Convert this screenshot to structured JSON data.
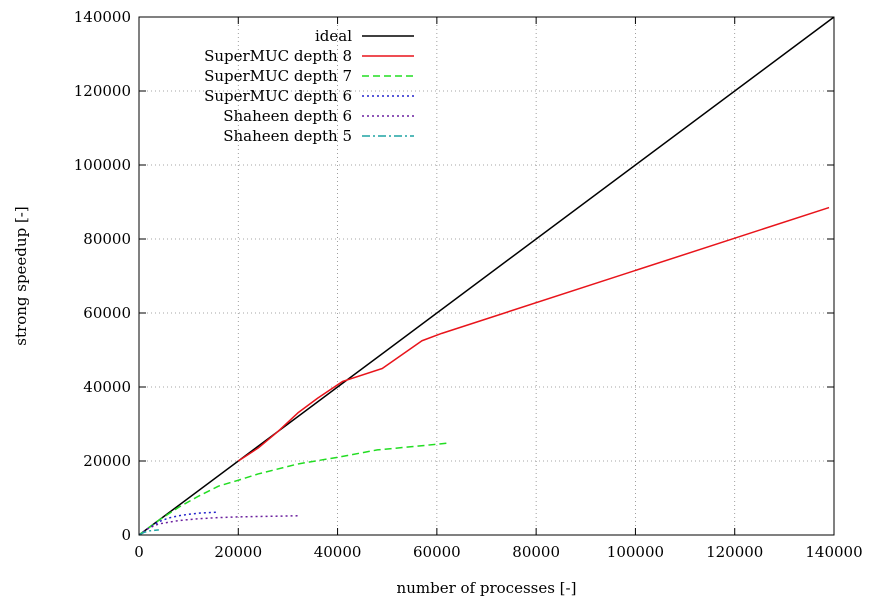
{
  "chart_data": {
    "type": "line",
    "xlabel": "number of processes [-]",
    "ylabel": "strong speedup [-]",
    "xlim": [
      0,
      140000
    ],
    "ylim": [
      0,
      140000
    ],
    "xticks": [
      0,
      20000,
      40000,
      60000,
      80000,
      100000,
      120000,
      140000
    ],
    "yticks": [
      0,
      20000,
      40000,
      60000,
      80000,
      100000,
      120000,
      140000
    ],
    "grid": true,
    "legend_position": "top-left",
    "series": [
      {
        "name": "ideal",
        "color": "#000000",
        "dash": "solid",
        "x": [
          0,
          140000
        ],
        "y": [
          0,
          140000
        ]
      },
      {
        "name": "SuperMUC depth 8",
        "color": "#e8141b",
        "dash": "solid",
        "x": [
          20000,
          24000,
          28000,
          32000,
          36000,
          41000,
          49000,
          57000,
          61000,
          139000
        ],
        "y": [
          20000,
          23500,
          28000,
          33000,
          37000,
          41500,
          45000,
          52500,
          54500,
          88500
        ]
      },
      {
        "name": "SuperMUC depth 7",
        "color": "#22dd22",
        "dash": "dashed",
        "x": [
          0,
          2000,
          4000,
          8000,
          12000,
          16000,
          20000,
          24000,
          32000,
          40000,
          48000,
          56000,
          62000
        ],
        "y": [
          0,
          2000,
          4000,
          7500,
          10500,
          13200,
          14800,
          16500,
          19200,
          21000,
          23000,
          24000,
          24800
        ]
      },
      {
        "name": "SuperMUC depth 6",
        "color": "#2222cc",
        "dash": "dotted",
        "x": [
          0,
          2000,
          4000,
          6000,
          8000,
          10000,
          12000,
          16000
        ],
        "y": [
          0,
          1900,
          3600,
          4600,
          5200,
          5600,
          5900,
          6200
        ]
      },
      {
        "name": "Shaheen depth 6",
        "color": "#6a1f9e",
        "dash": "dotted",
        "x": [
          0,
          2000,
          4000,
          8000,
          12000,
          16000,
          20000,
          24000,
          32500
        ],
        "y": [
          0,
          1900,
          3000,
          3900,
          4400,
          4700,
          4900,
          5000,
          5200
        ]
      },
      {
        "name": "Shaheen depth 5",
        "color": "#1fa3a3",
        "dash": "dashdot",
        "x": [
          0,
          1000,
          2000,
          4000
        ],
        "y": [
          0,
          700,
          1100,
          1400
        ]
      }
    ]
  }
}
